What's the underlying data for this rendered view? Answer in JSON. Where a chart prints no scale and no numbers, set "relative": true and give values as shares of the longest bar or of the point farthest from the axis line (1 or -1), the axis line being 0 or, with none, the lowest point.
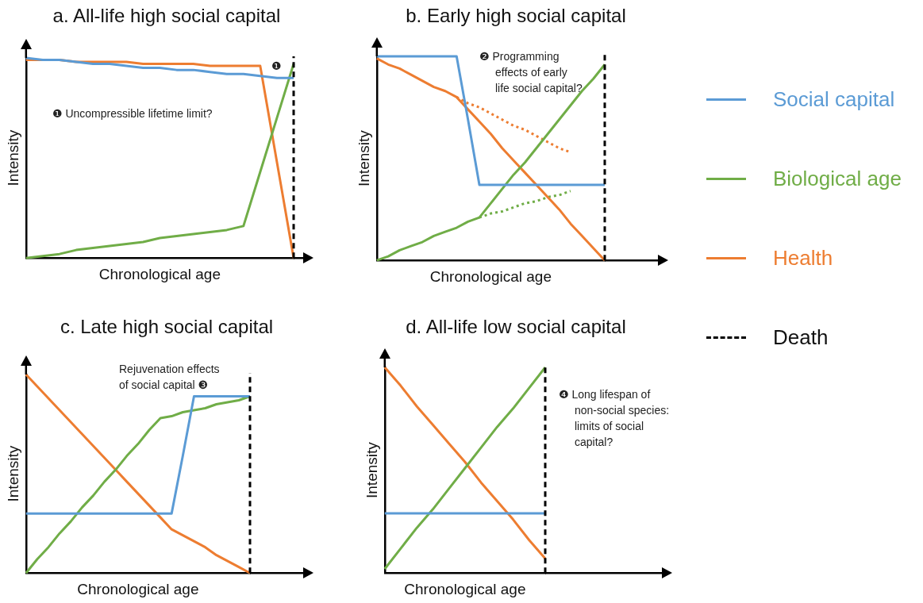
{
  "chart_data": [
    {
      "type": "line",
      "title": "a. All-life high social capital",
      "xlabel": "Chronological age",
      "ylabel": "Intensity",
      "relative": true,
      "grid": false,
      "categories": [
        null,
        null,
        null,
        null,
        null,
        null,
        null,
        null,
        null,
        null,
        null,
        null,
        null,
        null,
        null,
        null,
        null
      ],
      "series": [
        {
          "color": "#5b9bd5",
          "values": [
            1.0,
            0.99,
            0.99,
            0.98,
            0.97,
            0.97,
            0.96,
            0.95,
            0.95,
            0.94,
            0.94,
            0.93,
            0.92,
            0.92,
            0.91,
            0.9,
            0.9
          ]
        },
        {
          "color": "#70ad47",
          "values": [
            0,
            0.01,
            0.02,
            0.04,
            0.05,
            0.06,
            0.07,
            0.08,
            0.1,
            0.11,
            0.12,
            0.13,
            0.14,
            0.16,
            0.43,
            0.7,
            0.97
          ]
        },
        {
          "color": "#ed7d31",
          "values": [
            0.99,
            0.99,
            0.99,
            0.98,
            0.98,
            0.98,
            0.98,
            0.97,
            0.97,
            0.97,
            0.97,
            0.96,
            0.96,
            0.96,
            0.96,
            0.48,
            0
          ]
        }
      ],
      "annotations": [
        "❶",
        "❶ Uncompressible lifetime limit?"
      ]
    },
    {
      "type": "line",
      "title": "b. Early high social capital",
      "xlabel": "Chronological age",
      "ylabel": "Intensity",
      "relative": true,
      "grid": false,
      "legend": "right",
      "categories": [
        null,
        null,
        null,
        null,
        null,
        null,
        null,
        null,
        null,
        null,
        null,
        null,
        null,
        null,
        null,
        null,
        null,
        null,
        null,
        null,
        null
      ],
      "series": [
        {
          "name": "Social capital",
          "color": "#5b9bd5",
          "values": [
            1.0,
            1.0,
            1.0,
            1.0,
            1.0,
            1.0,
            1.0,
            1.0,
            0.69,
            0.37,
            0.37,
            0.37,
            0.37,
            0.37,
            0.37,
            0.37,
            0.37,
            0.37,
            0.37,
            0.37,
            0.37
          ]
        },
        {
          "name": "Biological age",
          "color": "#70ad47",
          "values": [
            0,
            0.02,
            0.05,
            0.07,
            0.09,
            0.12,
            0.14,
            0.16,
            0.19,
            0.21,
            0.28,
            0.35,
            0.42,
            0.48,
            0.55,
            0.62,
            0.69,
            0.76,
            0.83,
            0.89,
            0.96
          ]
        },
        {
          "name": "Health",
          "color": "#ed7d31",
          "values": [
            0.99,
            0.96,
            0.94,
            0.91,
            0.88,
            0.85,
            0.83,
            0.8,
            0.74,
            0.68,
            0.62,
            0.55,
            0.49,
            0.43,
            0.37,
            0.31,
            0.25,
            0.18,
            0.12,
            0.06,
            0
          ]
        },
        {
          "color": "#ed7d31",
          "line_style": "dotted",
          "values": [
            null,
            null,
            null,
            null,
            null,
            null,
            null,
            0.8,
            0.77,
            0.75,
            0.72,
            0.69,
            0.66,
            0.64,
            0.61,
            0.58,
            0.55,
            0.53,
            null,
            null,
            null
          ]
        },
        {
          "color": "#70ad47",
          "line_style": "dotted",
          "values": [
            null,
            null,
            null,
            null,
            null,
            null,
            null,
            null,
            null,
            0.21,
            0.23,
            0.24,
            0.26,
            0.28,
            0.29,
            0.31,
            0.32,
            0.34,
            null,
            null,
            null
          ]
        }
      ],
      "annotations": [
        "❷ Programming effects of early life social capital?",
        "Death"
      ]
    },
    {
      "type": "line",
      "title": "c. Late high social capital",
      "xlabel": "Chronological age",
      "ylabel": "Intensity",
      "relative": true,
      "grid": false,
      "categories": [
        null,
        null,
        null,
        null,
        null,
        null,
        null,
        null,
        null,
        null,
        null,
        null,
        null,
        null,
        null,
        null,
        null,
        null,
        null,
        null,
        null
      ],
      "series": [
        {
          "color": "#5b9bd5",
          "values": [
            0.3,
            0.3,
            0.3,
            0.3,
            0.3,
            0.3,
            0.3,
            0.3,
            0.3,
            0.3,
            0.3,
            0.3,
            0.3,
            0.3,
            0.59,
            0.89,
            0.89,
            0.89,
            0.89,
            0.89,
            0.89
          ]
        },
        {
          "color": "#70ad47",
          "values": [
            0,
            0.07,
            0.13,
            0.2,
            0.26,
            0.33,
            0.39,
            0.46,
            0.52,
            0.59,
            0.65,
            0.72,
            0.78,
            0.79,
            0.81,
            0.82,
            0.83,
            0.85,
            0.86,
            0.87,
            0.89
          ]
        },
        {
          "color": "#ed7d31",
          "values": [
            1.0,
            0.94,
            0.88,
            0.82,
            0.76,
            0.7,
            0.64,
            0.58,
            0.52,
            0.46,
            0.4,
            0.34,
            0.28,
            0.22,
            0.19,
            0.16,
            0.13,
            0.09,
            0.06,
            0.03,
            0
          ]
        }
      ],
      "annotations": [
        "Rejuvenation effects of social capital ❸"
      ]
    },
    {
      "type": "line",
      "title": "d. All-life low social capital",
      "xlabel": "Chronological age",
      "ylabel": "Intensity",
      "relative": true,
      "grid": false,
      "categories": [
        null,
        null,
        null,
        null,
        null,
        null,
        null,
        null,
        null,
        null,
        null
      ],
      "series": [
        {
          "color": "#5b9bd5",
          "values": [
            0.29,
            0.29,
            0.29,
            0.29,
            0.29,
            0.29,
            0.29,
            0.29,
            0.29,
            0.29,
            0.29
          ]
        },
        {
          "color": "#70ad47",
          "values": [
            0.02,
            0.12,
            0.22,
            0.31,
            0.41,
            0.51,
            0.61,
            0.71,
            0.8,
            0.9,
            1.0
          ]
        },
        {
          "color": "#ed7d31",
          "values": [
            1.0,
            0.91,
            0.81,
            0.72,
            0.63,
            0.54,
            0.44,
            0.35,
            0.26,
            0.16,
            0.07
          ]
        }
      ],
      "annotations": [
        "❹ Long lifespan of non-social species: limits of social capital?"
      ]
    }
  ]
}
